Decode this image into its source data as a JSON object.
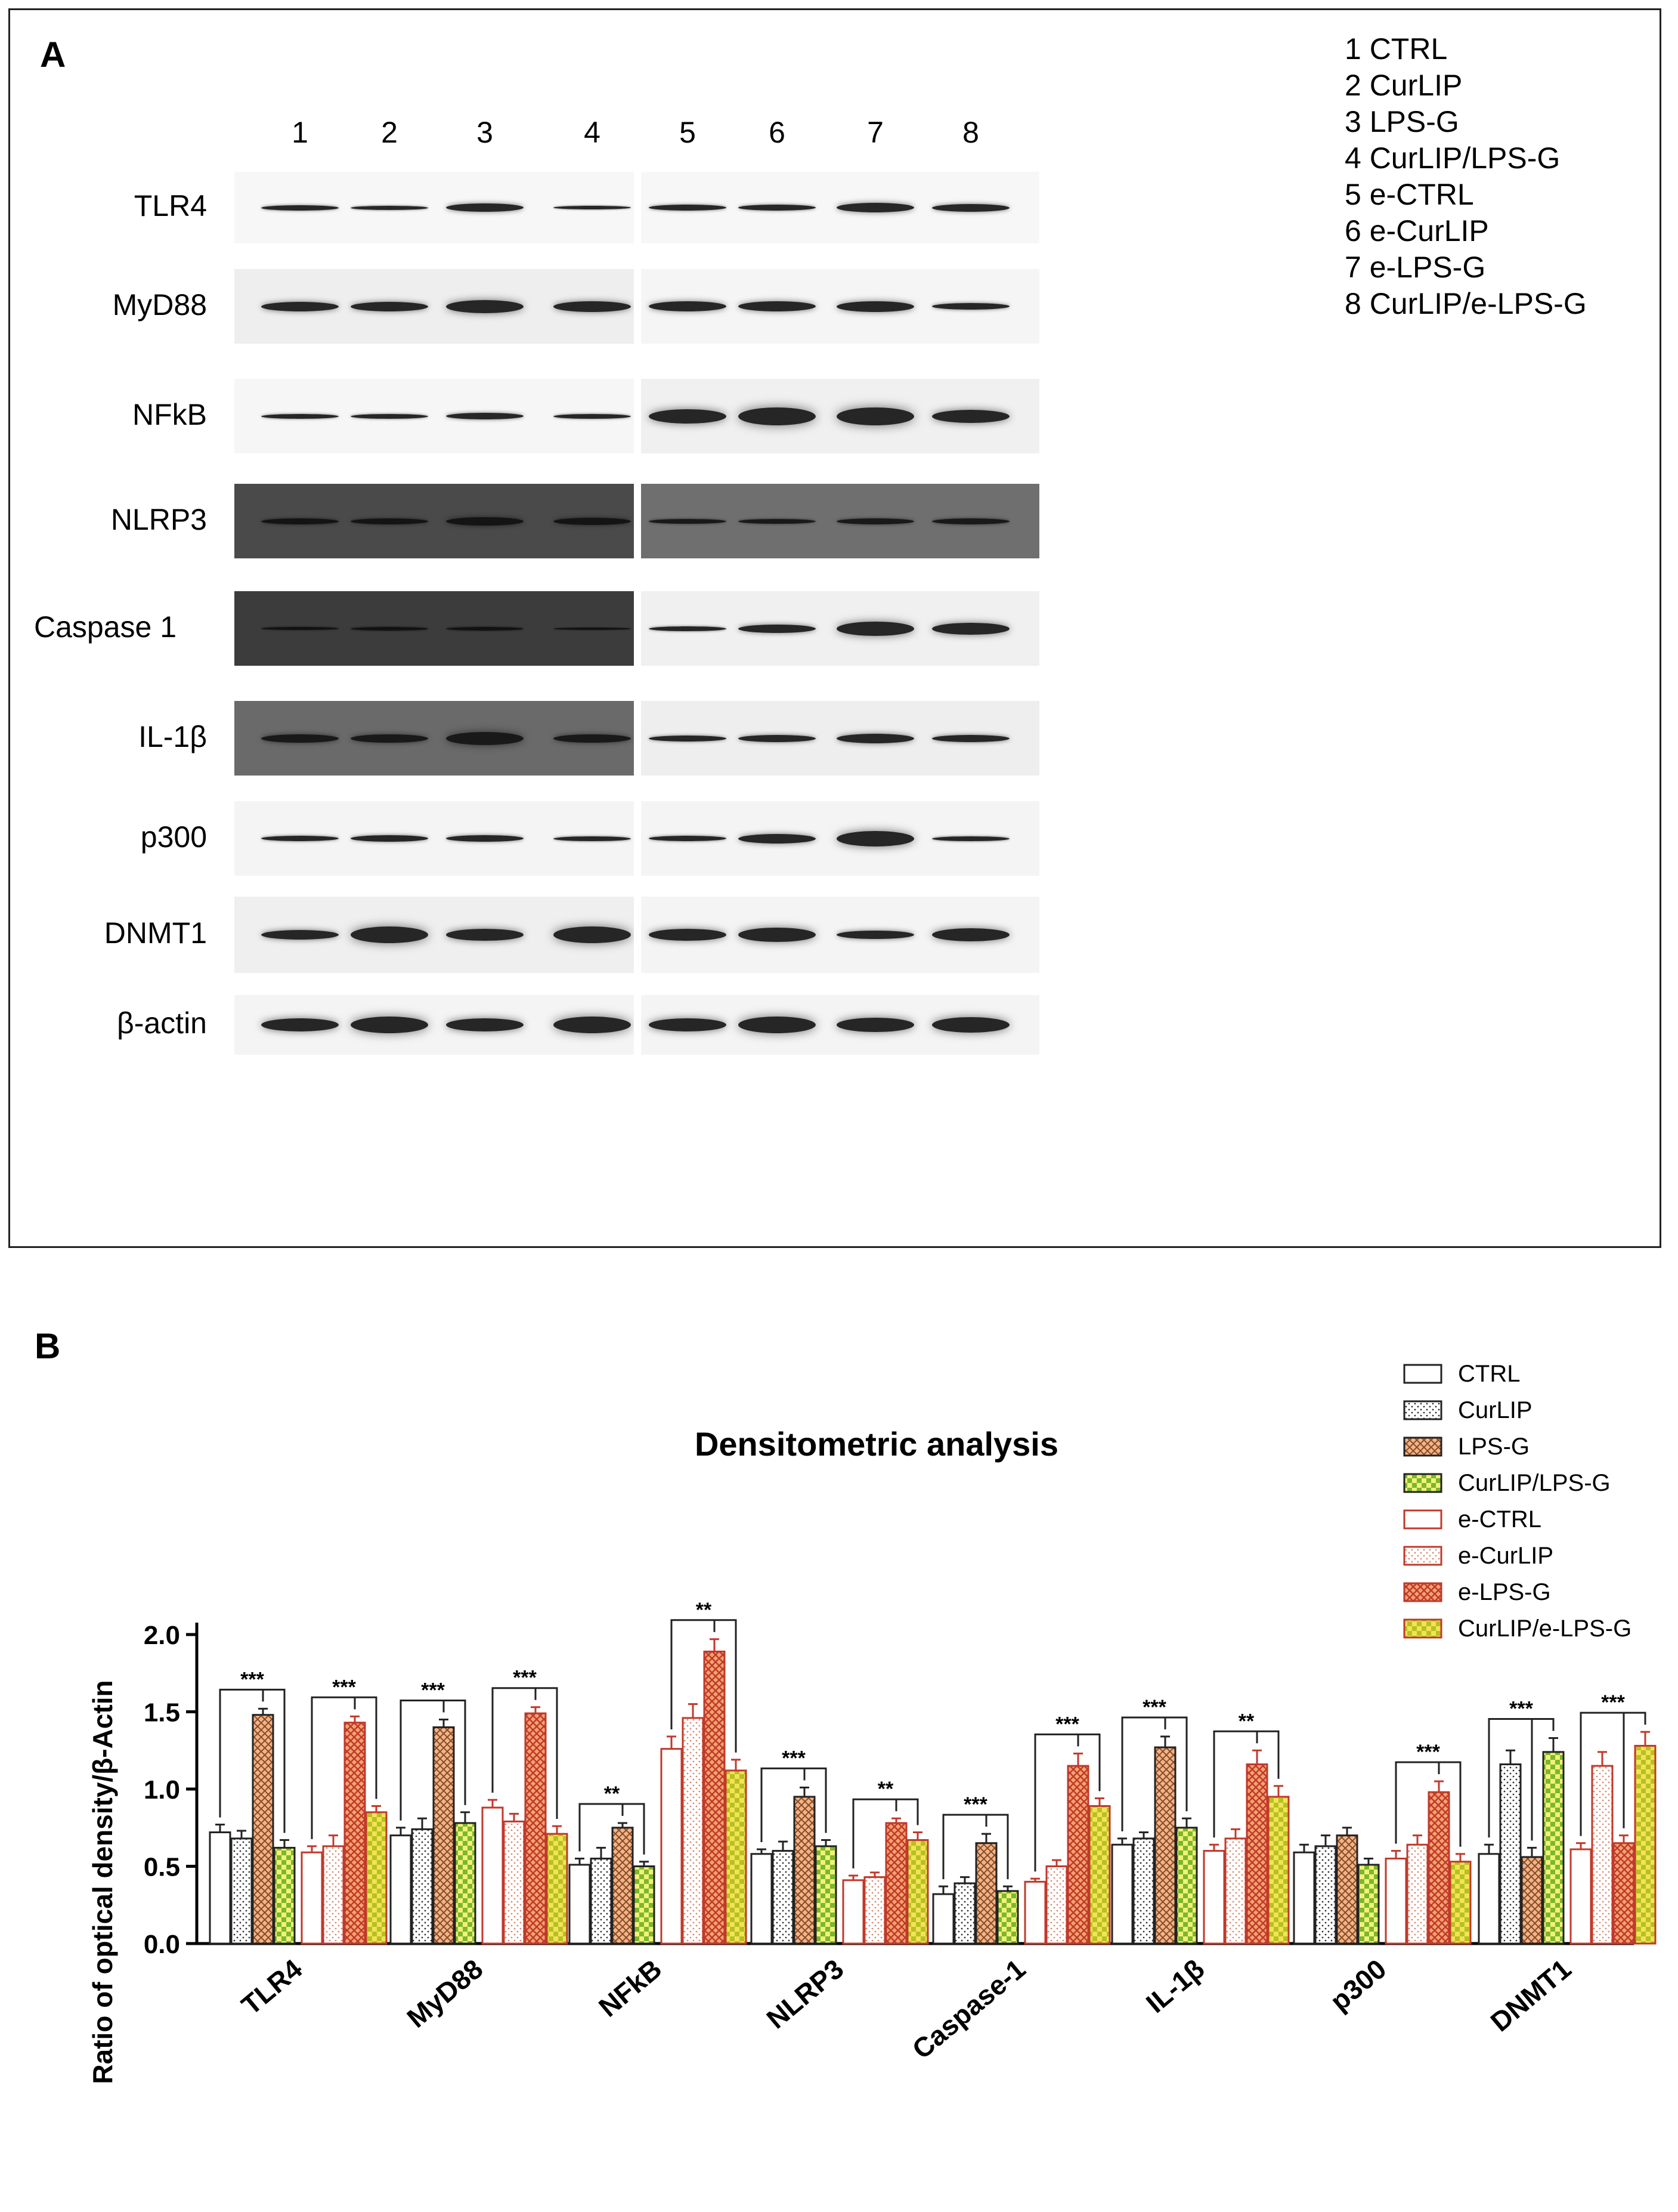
{
  "panel_a": {
    "label": "A",
    "lanes": [
      "1",
      "2",
      "3",
      "4",
      "5",
      "6",
      "7",
      "8"
    ],
    "proteins": [
      "TLR4",
      "MyD88",
      "NFkB",
      "NLRP3",
      "Caspase 1",
      "IL-1β",
      "p300",
      "DNMT1",
      "β-actin"
    ],
    "legend": [
      "1 CTRL",
      "2 CurLIP",
      "3 LPS-G",
      "4 CurLIP/LPS-G",
      "5 e-CTRL",
      "6 e-CurLIP",
      "7 e-LPS-G",
      "8 CurLIP/e-LPS-G"
    ]
  },
  "panel_b": {
    "label": "B"
  },
  "chart_data": {
    "type": "bar",
    "title": "Densitometric analysis",
    "ylabel": "Ratio of optical density/β-Actin",
    "xlabel": "",
    "ylim": [
      0,
      2.0
    ],
    "yticks": [
      "0.0",
      "0.5",
      "1.0",
      "1.5",
      "2.0"
    ],
    "categories": [
      "TLR4",
      "MyD88",
      "NFkB",
      "NLRP3",
      "Caspase-1",
      "IL-1β",
      "p300",
      "DNMT1"
    ],
    "series": [
      {
        "name": "CTRL",
        "color": "#222222",
        "pattern": "none",
        "values": [
          0.72,
          0.7,
          0.51,
          0.58,
          0.32,
          0.64,
          0.59,
          0.58
        ],
        "errors": [
          0.05,
          0.05,
          0.04,
          0.03,
          0.05,
          0.04,
          0.05,
          0.06
        ]
      },
      {
        "name": "CurLIP",
        "color": "#222222",
        "pattern": "dots",
        "values": [
          0.68,
          0.74,
          0.55,
          0.6,
          0.39,
          0.68,
          0.63,
          1.16
        ],
        "errors": [
          0.05,
          0.07,
          0.07,
          0.06,
          0.04,
          0.04,
          0.07,
          0.09
        ]
      },
      {
        "name": "LPS-G",
        "color": "#222222",
        "pattern": "cross",
        "values": [
          1.48,
          1.4,
          0.75,
          0.95,
          0.65,
          1.27,
          0.7,
          0.56
        ],
        "errors": [
          0.04,
          0.05,
          0.03,
          0.06,
          0.06,
          0.07,
          0.05,
          0.06
        ]
      },
      {
        "name": "CurLIP/LPS-G",
        "color": "#222222",
        "pattern": "check",
        "values": [
          0.62,
          0.78,
          0.5,
          0.63,
          0.34,
          0.75,
          0.51,
          1.24
        ],
        "errors": [
          0.05,
          0.07,
          0.03,
          0.04,
          0.03,
          0.06,
          0.04,
          0.09
        ]
      },
      {
        "name": "e-CTRL",
        "color": "#c0392b",
        "pattern": "none",
        "values": [
          0.59,
          0.88,
          1.26,
          0.41,
          0.4,
          0.6,
          0.55,
          0.61
        ],
        "errors": [
          0.04,
          0.05,
          0.08,
          0.03,
          0.02,
          0.04,
          0.05,
          0.04
        ]
      },
      {
        "name": "e-CurLIP",
        "color": "#c0392b",
        "pattern": "dots",
        "values": [
          0.63,
          0.79,
          1.46,
          0.43,
          0.5,
          0.68,
          0.64,
          1.15
        ],
        "errors": [
          0.07,
          0.05,
          0.09,
          0.03,
          0.04,
          0.06,
          0.06,
          0.09
        ]
      },
      {
        "name": "e-LPS-G",
        "color": "#c0392b",
        "pattern": "cross",
        "values": [
          1.43,
          1.49,
          1.89,
          0.78,
          1.15,
          1.16,
          0.98,
          0.65
        ],
        "errors": [
          0.04,
          0.04,
          0.08,
          0.03,
          0.08,
          0.09,
          0.07,
          0.05
        ]
      },
      {
        "name": "CurLIP/e-LPS-G",
        "color": "#c0392b",
        "pattern": "check",
        "values": [
          0.85,
          0.71,
          1.12,
          0.67,
          0.89,
          0.95,
          0.53,
          1.28
        ],
        "errors": [
          0.04,
          0.05,
          0.07,
          0.05,
          0.05,
          0.07,
          0.05,
          0.09
        ]
      }
    ],
    "significance": [
      {
        "category": "TLR4",
        "group": "first",
        "label": "***"
      },
      {
        "category": "TLR4",
        "group": "second",
        "label": "***"
      },
      {
        "category": "MyD88",
        "group": "first",
        "label": "***"
      },
      {
        "category": "MyD88",
        "group": "second",
        "label": "***"
      },
      {
        "category": "NFkB",
        "group": "first",
        "label": "**"
      },
      {
        "category": "NFkB",
        "group": "second",
        "label": "**"
      },
      {
        "category": "NLRP3",
        "group": "first",
        "label": "***"
      },
      {
        "category": "NLRP3",
        "group": "second",
        "label": "**"
      },
      {
        "category": "Caspase-1",
        "group": "first",
        "label": "***"
      },
      {
        "category": "Caspase-1",
        "group": "second",
        "label": "***"
      },
      {
        "category": "IL-1β",
        "group": "first",
        "label": "***"
      },
      {
        "category": "IL-1β",
        "group": "second",
        "label": "**"
      },
      {
        "category": "p300",
        "group": "second",
        "label": "***"
      },
      {
        "category": "DNMT1",
        "group": "first",
        "label": "***"
      },
      {
        "category": "DNMT1",
        "group": "second",
        "label": "***"
      }
    ]
  }
}
